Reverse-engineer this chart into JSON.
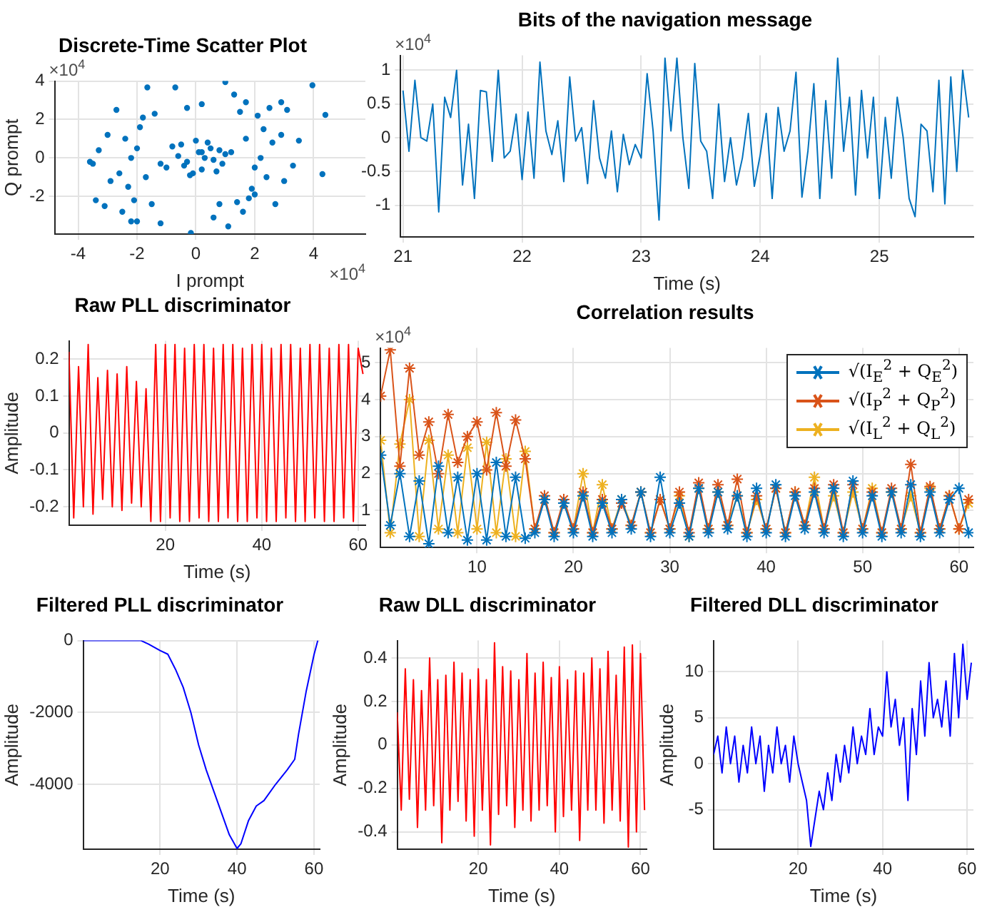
{
  "chart_data": [
    {
      "type": "scatter",
      "title": "Discrete-Time Scatter Plot",
      "xlabel": "I prompt",
      "ylabel": "Q prompt",
      "color": "#0072bd",
      "marker": "circle",
      "grid": true,
      "annotations": [
        "×10$^{4}$",
        "×10$^{4}$"
      ],
      "xlim": [
        -4.8,
        5.76
      ],
      "ylim": [
        -3.96,
        4
      ],
      "xticks": [
        -4,
        -2,
        0,
        2,
        4
      ],
      "yticks": [
        -2,
        0,
        2,
        4
      ],
      "x": [
        0.1,
        -0.3,
        0.5,
        0.2,
        -0.6,
        0.8,
        -0.1,
        0.4,
        -0.4,
        0.9,
        -0.8,
        0.3,
        0.0,
        -0.2,
        0.6,
        1.0,
        -1.0,
        0.7,
        -0.5,
        0.2,
        -2.0,
        -2.3,
        -1.8,
        -2.6,
        -3.0,
        -1.5,
        -2.2,
        -2.9,
        -1.9,
        -2.5,
        -3.3,
        -1.2,
        -2.1,
        -2.7,
        -1.7,
        -3.5,
        -2.4,
        -1.4,
        -3.1,
        -2.0,
        2.0,
        2.3,
        1.8,
        2.6,
        3.0,
        1.5,
        2.2,
        2.9,
        1.9,
        2.5,
        3.3,
        1.2,
        2.1,
        2.7,
        1.7,
        3.5,
        2.4,
        1.4,
        3.1,
        2.0,
        -1.65,
        -0.7,
        1.0,
        3.96,
        4.4,
        4.3,
        -0.17,
        1.1,
        -3.4,
        1.3,
        0.2,
        -1.2,
        1.6,
        -2.2,
        0.6,
        -0.3,
        0.8,
        1.7,
        -3.6,
        2.9
      ],
      "values": [
        0.3,
        -0.2,
        0.5,
        -0.6,
        0.1,
        0.4,
        -0.8,
        0.8,
        -0.4,
        -0.3,
        0.6,
        0.0,
        0.9,
        -0.9,
        -0.1,
        0.2,
        -0.5,
        -0.7,
        0.7,
        0.3,
        0.5,
        -1.5,
        2.1,
        -0.8,
        1.2,
        -2.4,
        0.0,
        -1.2,
        1.6,
        -2.8,
        0.4,
        -0.3,
        -2.2,
        2.5,
        -1.0,
        -0.3,
        1.0,
        2.3,
        -2.5,
        -3.3,
        -0.5,
        1.5,
        -2.1,
        0.8,
        -1.2,
        2.4,
        0.0,
        1.2,
        -1.6,
        2.6,
        -0.4,
        0.3,
        2.2,
        -2.4,
        1.0,
        0.9,
        -1.0,
        -2.3,
        2.5,
        -1.9,
        3.67,
        3.67,
        3.95,
        3.78,
        2.24,
        -0.84,
        -3.9,
        -3.56,
        -2.2,
        3.3,
        2.8,
        -3.4,
        -2.8,
        -3.3,
        -3.1,
        2.6,
        -2.4,
        2.9,
        -0.2,
        2.9
      ]
    },
    {
      "type": "line",
      "title": "Bits of the navigation message",
      "xlabel": "Time (s)",
      "color": "#0072bd",
      "line_style": "solid",
      "grid": true,
      "annotations": [
        "×10$^{4}$"
      ],
      "xlim": [
        20.98,
        25.79
      ],
      "ylim": [
        -1.47,
        1.22
      ],
      "xticks": [
        21,
        22,
        23,
        24,
        25
      ],
      "yticks": [
        -1,
        -0.5,
        0,
        0.5,
        1
      ],
      "x": [
        21,
        21.05,
        21.1,
        21.15,
        21.2,
        21.25,
        21.3,
        21.35,
        21.4,
        21.45,
        21.5,
        21.55,
        21.6,
        21.65,
        21.7,
        21.75,
        21.8,
        21.85,
        21.9,
        21.95,
        22,
        22.05,
        22.1,
        22.15,
        22.2,
        22.25,
        22.3,
        22.35,
        22.4,
        22.45,
        22.5,
        22.55,
        22.6,
        22.65,
        22.7,
        22.75,
        22.8,
        22.85,
        22.9,
        22.95,
        23,
        23.05,
        23.1,
        23.15,
        23.2,
        23.25,
        23.3,
        23.35,
        23.4,
        23.45,
        23.5,
        23.55,
        23.6,
        23.65,
        23.7,
        23.75,
        23.8,
        23.85,
        23.9,
        23.95,
        24,
        24.05,
        24.1,
        24.15,
        24.2,
        24.25,
        24.3,
        24.35,
        24.4,
        24.45,
        24.5,
        24.55,
        24.6,
        24.65,
        24.7,
        24.75,
        24.8,
        24.85,
        24.9,
        24.95,
        25,
        25.05,
        25.1,
        25.15,
        25.2,
        25.25,
        25.3,
        25.35,
        25.4,
        25.45,
        25.5,
        25.55,
        25.6,
        25.65,
        25.7,
        25.75
      ],
      "values": [
        0.7,
        -0.2,
        0.85,
        0.0,
        -0.05,
        0.5,
        -1.1,
        0.6,
        0.3,
        1.0,
        -0.7,
        0.2,
        -0.9,
        0.7,
        0.68,
        -0.35,
        1.0,
        -0.3,
        -0.2,
        0.35,
        -0.62,
        0.38,
        -0.6,
        1.12,
        0.1,
        -0.25,
        0.25,
        -0.65,
        0.9,
        -0.05,
        0.15,
        -0.68,
        0.55,
        -0.3,
        -0.6,
        0.1,
        -0.8,
        0.05,
        -0.4,
        -0.1,
        -0.3,
        0.95,
        0.1,
        -1.22,
        1.18,
        0.1,
        1.18,
        0.0,
        -0.75,
        1.1,
        -0.05,
        -0.2,
        -0.9,
        0.5,
        -0.65,
        0.0,
        -0.7,
        -0.3,
        0.36,
        -0.72,
        -0.25,
        0.36,
        -0.9,
        0.45,
        -0.2,
        0.1,
        0.97,
        -0.88,
        -0.2,
        0.8,
        -0.9,
        0.55,
        -0.6,
        1.18,
        -0.2,
        0.6,
        -0.85,
        0.7,
        -0.3,
        0.6,
        -0.9,
        0.3,
        -0.6,
        0.6,
        0.0,
        -0.9,
        -1.17,
        0.2,
        0.1,
        -0.8,
        0.85,
        -0.98,
        0.9,
        -0.5,
        1.0,
        0.3
      ]
    },
    {
      "type": "line",
      "title": "Raw PLL discriminator",
      "xlabel": "Time (s)",
      "ylabel": "Amplitude",
      "color": "#ff0000",
      "line_style": "solid",
      "grid": true,
      "xlim": [
        0,
        61.5
      ],
      "ylim": [
        -0.25,
        0.25
      ],
      "xticks": [
        20,
        40,
        60
      ],
      "yticks": [
        -0.2,
        -0.1,
        0,
        0.1,
        0.2
      ],
      "x": [
        0,
        1,
        2,
        3,
        4,
        5,
        6,
        7,
        8,
        9,
        10,
        11,
        12,
        13,
        14,
        15,
        16,
        17,
        18,
        19,
        20,
        21,
        22,
        23,
        24,
        25,
        26,
        27,
        28,
        29,
        30,
        31,
        32,
        33,
        34,
        35,
        36,
        37,
        38,
        39,
        40,
        41,
        42,
        43,
        44,
        45,
        46,
        47,
        48,
        49,
        50,
        51,
        52,
        53,
        54,
        55,
        56,
        57,
        58,
        59,
        60,
        61
      ],
      "values": [
        0.22,
        -0.23,
        0.18,
        -0.2,
        0.24,
        -0.22,
        0.15,
        -0.18,
        0.17,
        -0.2,
        0.16,
        -0.21,
        0.18,
        -0.19,
        0.14,
        -0.2,
        0.12,
        -0.24,
        0.24,
        -0.24,
        0.24,
        -0.23,
        0.24,
        -0.24,
        0.23,
        -0.24,
        0.24,
        -0.23,
        0.24,
        -0.24,
        0.23,
        -0.24,
        0.24,
        -0.23,
        0.24,
        -0.24,
        0.23,
        -0.24,
        0.24,
        -0.23,
        0.24,
        -0.24,
        0.23,
        -0.24,
        0.24,
        -0.23,
        0.24,
        -0.24,
        0.23,
        -0.24,
        0.24,
        -0.23,
        0.24,
        -0.24,
        0.23,
        -0.24,
        0.24,
        -0.23,
        0.24,
        -0.24,
        0.23,
        0.16
      ]
    },
    {
      "type": "line",
      "title": "Correlation results",
      "marker": "cross",
      "line_style": "solid",
      "grid": true,
      "legend": "top right",
      "annotations": [
        "×10$^{4}$"
      ],
      "xlim": [
        0,
        61.5
      ],
      "ylim": [
        0,
        5.4
      ],
      "xticks": [
        10,
        20,
        30,
        40,
        50,
        60
      ],
      "yticks": [
        1,
        2,
        3,
        4,
        5
      ],
      "x": [
        0,
        1,
        2,
        3,
        4,
        5,
        6,
        7,
        8,
        9,
        10,
        11,
        12,
        13,
        14,
        15,
        16,
        17,
        18,
        19,
        20,
        21,
        22,
        23,
        24,
        25,
        26,
        27,
        28,
        29,
        30,
        31,
        32,
        33,
        34,
        35,
        36,
        37,
        38,
        39,
        40,
        41,
        42,
        43,
        44,
        45,
        46,
        47,
        48,
        49,
        50,
        51,
        52,
        53,
        54,
        55,
        56,
        57,
        58,
        59,
        60,
        61
      ],
      "series": [
        {
          "name": "√(I$_{E}$$^{2}$ + Q$_{E}$$^{2}$)",
          "color": "#0072bd",
          "values": [
            2.5,
            0.6,
            2.0,
            0.3,
            1.8,
            0.1,
            2.2,
            0.4,
            1.9,
            0.2,
            2.0,
            0.2,
            2.3,
            0.3,
            1.9,
            0.25,
            0.4,
            1.3,
            0.3,
            1.2,
            0.4,
            1.4,
            0.3,
            1.2,
            0.4,
            1.3,
            0.5,
            1.5,
            0.3,
            1.9,
            0.4,
            1.2,
            0.3,
            1.6,
            0.4,
            1.5,
            0.5,
            1.4,
            0.3,
            1.6,
            0.4,
            1.7,
            0.3,
            1.4,
            0.5,
            1.5,
            0.4,
            1.6,
            0.3,
            1.8,
            0.4,
            1.4,
            0.3,
            1.5,
            0.4,
            1.7,
            0.3,
            1.5,
            0.4,
            1.3,
            1.6,
            0.4
          ]
        },
        {
          "name": "√(I$_{P}$$^{2}$ + Q$_{P}$$^{2}$)",
          "color": "#d95319",
          "values": [
            4.1,
            5.35,
            2.2,
            4.85,
            2.5,
            3.4,
            2.0,
            3.6,
            2.3,
            3.0,
            3.4,
            2.1,
            3.65,
            2.2,
            3.45,
            2.4,
            0.5,
            1.4,
            0.4,
            1.3,
            0.5,
            1.5,
            0.4,
            1.3,
            0.5,
            1.2,
            0.6,
            1.5,
            0.4,
            1.3,
            0.5,
            1.5,
            0.4,
            1.75,
            0.5,
            1.7,
            0.6,
            1.85,
            0.4,
            1.4,
            0.5,
            1.6,
            0.4,
            1.5,
            0.6,
            1.6,
            0.5,
            1.7,
            0.4,
            1.7,
            0.5,
            1.5,
            0.4,
            1.6,
            0.5,
            2.25,
            0.4,
            1.65,
            0.5,
            1.4,
            0.5,
            1.3
          ]
        },
        {
          "name": "√(I$_{L}$$^{2}$ + Q$_{L}$$^{2}$)",
          "color": "#edb120",
          "values": [
            2.9,
            0.4,
            2.8,
            4.0,
            0.3,
            2.9,
            0.5,
            2.5,
            0.4,
            2.7,
            0.5,
            2.85,
            0.4,
            2.4,
            0.3,
            2.6,
            0.5,
            1.3,
            0.4,
            1.2,
            0.5,
            2.0,
            0.4,
            1.7,
            0.5,
            1.3,
            0.6,
            1.5,
            0.4,
            1.3,
            0.5,
            1.4,
            0.3,
            1.6,
            0.5,
            1.5,
            0.6,
            1.4,
            0.4,
            1.3,
            0.5,
            1.6,
            0.4,
            1.5,
            0.6,
            1.9,
            0.5,
            1.4,
            0.4,
            1.5,
            0.5,
            1.6,
            0.4,
            1.5,
            0.5,
            1.4,
            0.4,
            1.6,
            0.5,
            1.4,
            0.5,
            1.2
          ]
        }
      ]
    },
    {
      "type": "line",
      "title": "Filtered PLL discriminator",
      "xlabel": "Time (s)",
      "ylabel": "Amplitude",
      "color": "#0000ff",
      "line_style": "solid",
      "grid": true,
      "xlim": [
        0,
        61.5
      ],
      "ylim": [
        -5800,
        0
      ],
      "xticks": [
        20,
        40,
        60
      ],
      "yticks": [
        -4000,
        -2000,
        0
      ],
      "x": [
        0,
        5,
        10,
        15,
        17,
        20,
        22,
        24,
        26,
        28,
        30,
        32,
        34,
        36,
        38,
        40,
        41,
        43,
        45,
        47,
        50,
        53,
        55,
        56,
        57,
        58,
        59,
        60,
        61
      ],
      "values": [
        0,
        0,
        0,
        0,
        -100,
        -280,
        -380,
        -800,
        -1300,
        -2000,
        -2900,
        -3600,
        -4200,
        -4800,
        -5400,
        -5780,
        -5650,
        -5000,
        -4600,
        -4450,
        -4000,
        -3600,
        -3300,
        -2600,
        -2000,
        -1400,
        -900,
        -400,
        0
      ]
    },
    {
      "type": "line",
      "title": "Raw DLL discriminator",
      "xlabel": "Time (s)",
      "ylabel": "Amplitude",
      "color": "#ff0000",
      "line_style": "solid",
      "grid": true,
      "xlim": [
        0,
        61.5
      ],
      "ylim": [
        -0.48,
        0.48
      ],
      "xticks": [
        20,
        40,
        60
      ],
      "yticks": [
        -0.4,
        -0.2,
        0,
        0.2,
        0.4
      ],
      "x": [
        0,
        1,
        2,
        3,
        4,
        5,
        6,
        7,
        8,
        9,
        10,
        11,
        12,
        13,
        14,
        15,
        16,
        17,
        18,
        19,
        20,
        21,
        22,
        23,
        24,
        25,
        26,
        27,
        28,
        29,
        30,
        31,
        32,
        33,
        34,
        35,
        36,
        37,
        38,
        39,
        40,
        41,
        42,
        43,
        44,
        45,
        46,
        47,
        48,
        49,
        50,
        51,
        52,
        53,
        54,
        55,
        56,
        57,
        58,
        59,
        60,
        61
      ],
      "values": [
        0.15,
        -0.3,
        0.35,
        -0.25,
        0.3,
        -0.38,
        0.25,
        -0.3,
        0.4,
        -0.28,
        0.3,
        -0.45,
        0.32,
        -0.3,
        0.38,
        -0.26,
        0.33,
        -0.35,
        0.3,
        -0.42,
        0.35,
        -0.3,
        0.3,
        -0.46,
        0.47,
        -0.32,
        0.36,
        -0.28,
        0.34,
        -0.38,
        0.3,
        -0.3,
        0.42,
        -0.35,
        0.33,
        -0.3,
        0.38,
        -0.28,
        0.31,
        -0.4,
        0.36,
        -0.33,
        0.3,
        -0.3,
        0.34,
        -0.44,
        0.33,
        -0.3,
        0.4,
        -0.3,
        0.35,
        -0.36,
        0.43,
        -0.3,
        0.32,
        -0.35,
        0.45,
        -0.47,
        0.46,
        -0.4,
        0.42,
        -0.3
      ]
    },
    {
      "type": "line",
      "title": "Filtered DLL discriminator",
      "xlabel": "Time (s)",
      "ylabel": "Amplitude",
      "color": "#0000ff",
      "line_style": "solid",
      "grid": true,
      "xlim": [
        0,
        61.5
      ],
      "ylim": [
        -9.3,
        13.4
      ],
      "xticks": [
        20,
        40,
        60
      ],
      "yticks": [
        -5,
        0,
        5,
        10
      ],
      "x": [
        0,
        1,
        2,
        3,
        4,
        5,
        6,
        7,
        8,
        9,
        10,
        11,
        12,
        13,
        14,
        15,
        16,
        17,
        18,
        19,
        20,
        21,
        22,
        23,
        24,
        25,
        26,
        27,
        28,
        29,
        30,
        31,
        32,
        33,
        34,
        35,
        36,
        37,
        38,
        39,
        40,
        41,
        42,
        43,
        44,
        45,
        46,
        47,
        48,
        49,
        50,
        51,
        52,
        53,
        54,
        55,
        56,
        57,
        58,
        59,
        60,
        61
      ],
      "values": [
        1,
        3,
        -1,
        4,
        0,
        3,
        -2,
        2,
        -1,
        4,
        0,
        3,
        -3,
        2,
        -1,
        4,
        0,
        2,
        -2,
        3,
        0,
        -2,
        -4,
        -9,
        -6,
        -3,
        -5,
        -1,
        -4,
        1,
        -2,
        2,
        -1,
        4,
        0,
        3,
        1,
        6,
        1,
        4,
        3,
        10,
        4,
        7,
        2,
        5,
        -4,
        6,
        1,
        9,
        3,
        11,
        5,
        7,
        4,
        9,
        3,
        12,
        5,
        13,
        7,
        11
      ]
    }
  ]
}
